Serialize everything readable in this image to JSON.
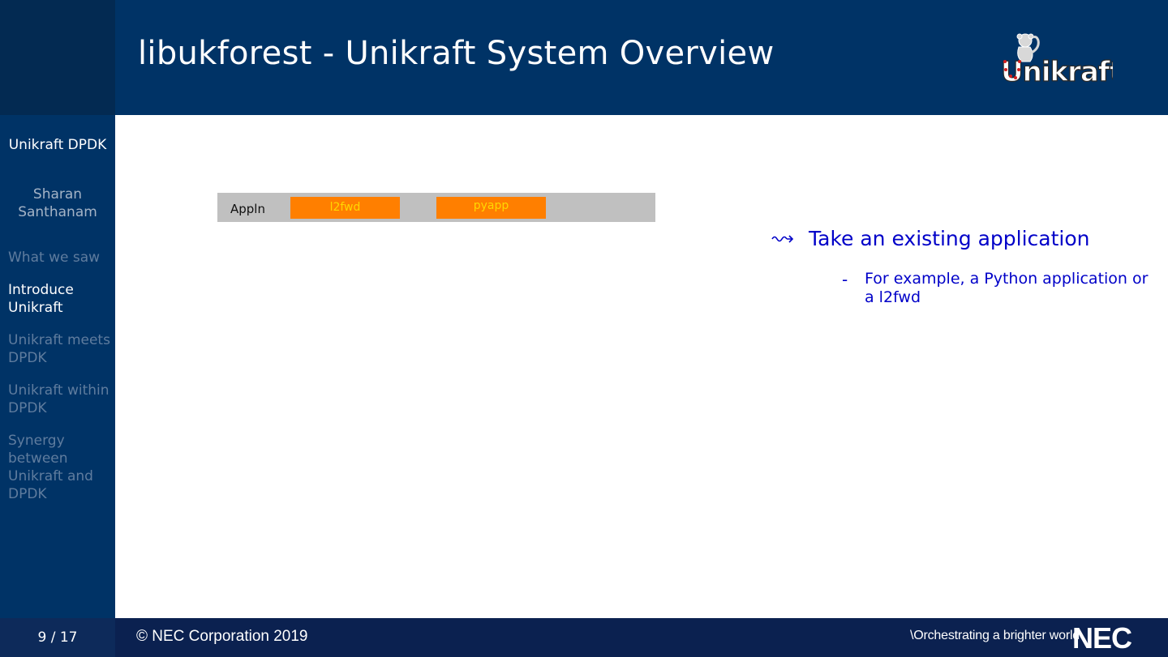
{
  "header": {
    "title": "libukforest - Unikraft System Overview",
    "logo_text": "Unikraft"
  },
  "sidebar": {
    "talk_title": "Unikraft DPDK",
    "author": "Sharan Santhanam",
    "nav": [
      {
        "label": "What we saw",
        "state": "inactive"
      },
      {
        "label": "Introduce Unikraft",
        "state": "active"
      },
      {
        "label": "Unikraft meets DPDK",
        "state": "inactive"
      },
      {
        "label": "Unikraft within DPDK",
        "state": "inactive"
      },
      {
        "label": "Synergy between Unikraft and DPDK",
        "state": "inactive"
      }
    ]
  },
  "diagram": {
    "layer_label": "Appln",
    "boxes": [
      "l2fwd",
      "pyapp"
    ],
    "colors": {
      "layer": "#c0c0c0",
      "box": "#ff7f00",
      "box_text": "#ffd700"
    }
  },
  "content": {
    "bullet_icon": "squiggly-arrow-icon",
    "bullet": "Take an existing application",
    "sub_bullet_dash": "-",
    "sub_bullet": "For example, a Python application or a l2fwd"
  },
  "footer": {
    "page": "9 / 17",
    "copyright": "© NEC Corporation 2019",
    "tagline": "\\Orchestrating a brighter world",
    "brand": "NEC"
  },
  "colors": {
    "header_bg": "#003366",
    "sidebar_bg": "#003366",
    "footer_bg": "#0b2150",
    "accent_text": "#0000c8"
  }
}
